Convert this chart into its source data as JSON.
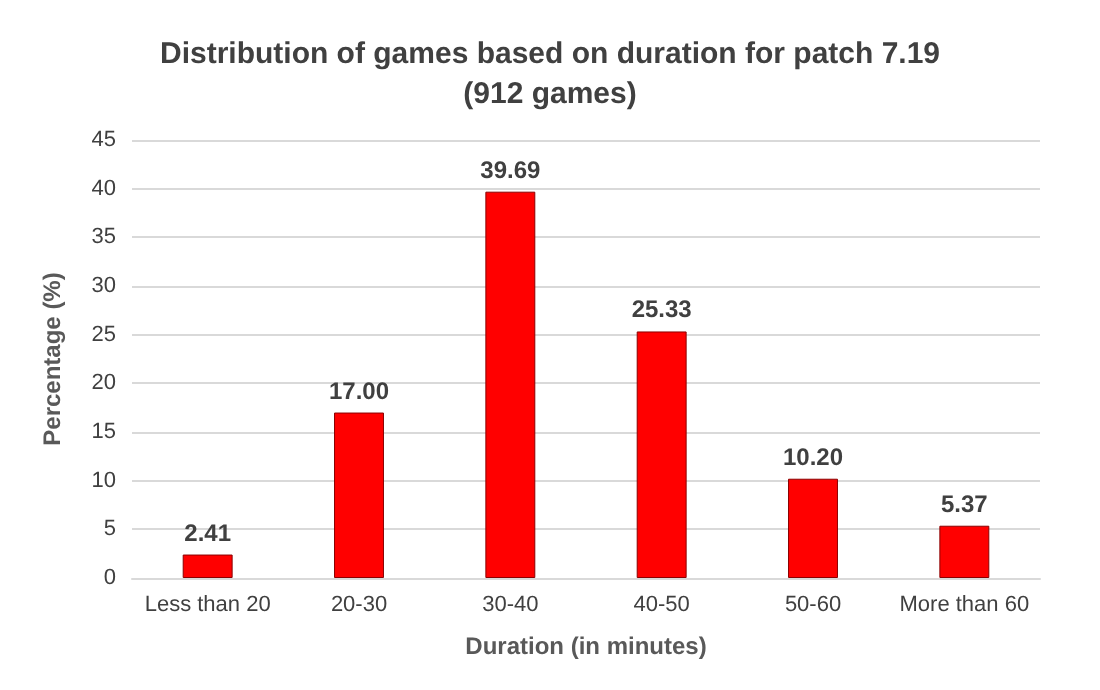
{
  "chart_data": {
    "type": "bar",
    "title": "Distribution of games based on duration for patch 7.19\n(912 games)",
    "xlabel": "Duration (in minutes)",
    "ylabel": "Percentage (%)",
    "categories": [
      "Less than 20",
      "20-30",
      "30-40",
      "40-50",
      "50-60",
      "More than 60"
    ],
    "values": [
      2.41,
      17.0,
      39.69,
      25.33,
      10.2,
      5.37
    ],
    "value_labels": [
      "2.41",
      "17.00",
      "39.69",
      "25.33",
      "10.20",
      "5.37"
    ],
    "color": "#ff0000",
    "ylim": [
      0,
      45
    ],
    "yticks": [
      0,
      5,
      10,
      15,
      20,
      25,
      30,
      35,
      40,
      45
    ],
    "grid": "y"
  }
}
